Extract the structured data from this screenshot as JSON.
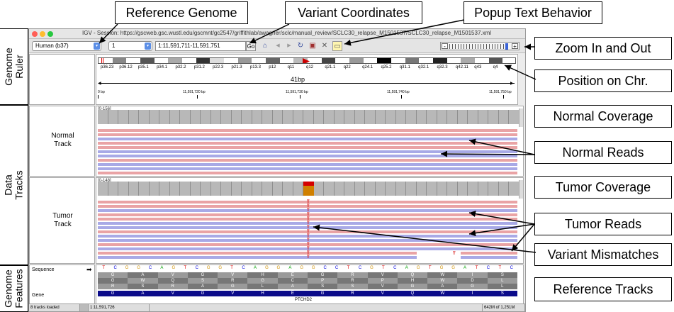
{
  "side_labels": {
    "genome_ruler": "Genome\nRuler",
    "data_tracks": "Data\nTracks",
    "genome_features": "Genome\nFeatures"
  },
  "callouts": {
    "reference_genome": "Reference Genome",
    "variant_coordinates": "Variant Coordinates",
    "popup_text": "Popup Text Behavior",
    "zoom": "Zoom In and Out",
    "position_on_chr": "Position on Chr.",
    "normal_coverage": "Normal Coverage",
    "normal_reads": "Normal Reads",
    "tumor_coverage": "Tumor Coverage",
    "tumor_reads": "Tumor Reads",
    "variant_mismatches": "Variant Mismatches",
    "reference_tracks": "Reference Tracks"
  },
  "igv": {
    "title": "IGV - Session: https://gscweb.gsc.wustl.edu/gscmnt/gc2547/griffithlab/awagner/sclc/manual_review/SCLC30_relapse_M1501537/SCLC30_relapse_M1501537.xml",
    "genome_select": "Human (b37)",
    "chrom_select": "1",
    "locus": "1:11,591,711-11,591,751",
    "go_label": "Go",
    "icons": {
      "home": "⌂",
      "back": "◀",
      "forward": "▶",
      "refresh": "↻",
      "roi": "▣",
      "close": "✕",
      "popup": "▭"
    },
    "zoom_minus": "-",
    "zoom_plus": "+",
    "cytobands": [
      "p36.23",
      "p36.12",
      "p35.1",
      "p34.1",
      "p32.2",
      "p31.2",
      "p22.3",
      "p21.3",
      "p13.3",
      "p12",
      "q11",
      "q12",
      "q21.1",
      "q22",
      "q24.1",
      "q25.2",
      "q31.1",
      "q32.1",
      "q32.3",
      "q42.11",
      "q43",
      "q4"
    ],
    "span_label": "41bp",
    "ruler_ticks": [
      "0 bp",
      "11,591,720 bp",
      "11,591,730 bp",
      "11,591,740 bp",
      "11,591,750 bp"
    ],
    "normal_range": "[0-156]",
    "tumor_range": "[0-148]",
    "normal_name": "Normal\nTrack",
    "tumor_name": "Tumor\nTrack",
    "sequence_label": "Sequence",
    "sequence_arrow": "➡",
    "gene_label": "Gene",
    "sequence": "TCGGCAGTCGGTCAGGAGGCCTCGTCAGTGGATCTC",
    "mismatch_base": "T",
    "amino_row1": [
      "G",
      "A",
      "V",
      "G",
      "V",
      "H",
      "E",
      "G",
      "R",
      "V",
      "Q",
      "W",
      "I",
      "S"
    ],
    "amino_row2": [
      "G",
      "W",
      "Q",
      "S",
      "R",
      "G",
      "C",
      "P",
      "R",
      "P",
      "H",
      "W",
      "D",
      "L"
    ],
    "amino_row3": [
      "R",
      "S",
      "R",
      "A",
      "G",
      "L",
      "A",
      "S",
      "S",
      "V",
      "G",
      "A",
      "G",
      "L"
    ],
    "gene_amino": [
      "G",
      "A",
      "V",
      "G",
      "V",
      "H",
      "E",
      "G",
      "R",
      "V",
      "Q",
      "W",
      "I",
      "S"
    ],
    "gene_name": "PTCHD2",
    "status_tracks": "8 tracks loaded",
    "status_position": "1:11,591,726",
    "status_memory": "642M of 1,251M"
  },
  "colors": {
    "forward_read": "#e9a3a5",
    "reverse_read": "#a8a9e6",
    "coverage": "#b8b8b8",
    "variant_T": "#d40000",
    "variant_ref": "#d08000",
    "gene_bar": "#0b0b8a"
  }
}
